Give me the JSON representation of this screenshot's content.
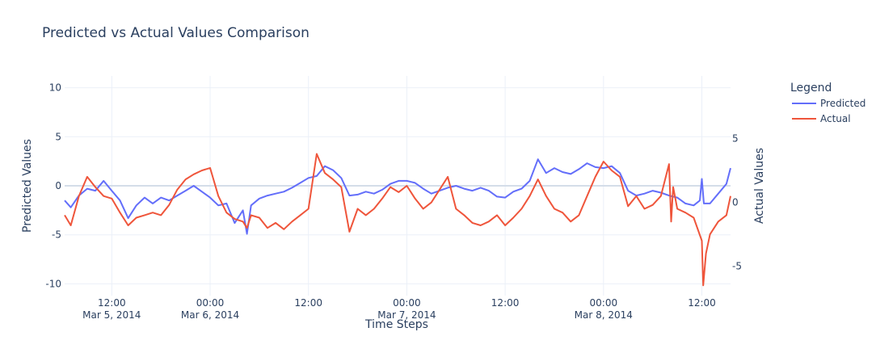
{
  "chart_data": {
    "type": "line",
    "title": "Predicted vs Actual Values Comparison",
    "xlabel": "Time Steps",
    "ylabel_left": "Predicted Values",
    "ylabel_right": "Actual Values",
    "legend_title": "Legend",
    "legend_placement": "top-right outside",
    "grid": true,
    "x_range": [
      "2014-03-05T06:15",
      "2014-03-08T15:30"
    ],
    "y_left_range": [
      -11.2,
      11.2
    ],
    "y_right_range": [
      -7.3,
      9.9
    ],
    "x_ticks": [
      {
        "value": "2014-03-05T12:00",
        "line1": "12:00",
        "line2": "Mar 5, 2014"
      },
      {
        "value": "2014-03-06T00:00",
        "line1": "00:00",
        "line2": "Mar 6, 2014"
      },
      {
        "value": "2014-03-06T12:00",
        "line1": "12:00",
        "line2": ""
      },
      {
        "value": "2014-03-07T00:00",
        "line1": "00:00",
        "line2": "Mar 7, 2014"
      },
      {
        "value": "2014-03-07T12:00",
        "line1": "12:00",
        "line2": ""
      },
      {
        "value": "2014-03-08T00:00",
        "line1": "00:00",
        "line2": "Mar 8, 2014"
      },
      {
        "value": "2014-03-08T12:00",
        "line1": "12:00",
        "line2": ""
      }
    ],
    "y_left_ticks": [
      10,
      5,
      0,
      -5,
      -10
    ],
    "y_right_ticks": [
      5,
      0,
      -5
    ],
    "series": [
      {
        "name": "Predicted",
        "axis": "left",
        "color": "#636efa",
        "points": [
          [
            "2014-03-05T06:15",
            -1.5
          ],
          [
            "2014-03-05T07:00",
            -2.2
          ],
          [
            "2014-03-05T08:00",
            -1.0
          ],
          [
            "2014-03-05T09:00",
            -0.3
          ],
          [
            "2014-03-05T10:00",
            -0.5
          ],
          [
            "2014-03-05T11:00",
            0.5
          ],
          [
            "2014-03-05T12:00",
            -0.5
          ],
          [
            "2014-03-05T13:00",
            -1.5
          ],
          [
            "2014-03-05T14:00",
            -3.3
          ],
          [
            "2014-03-05T15:00",
            -2.0
          ],
          [
            "2014-03-05T16:00",
            -1.2
          ],
          [
            "2014-03-05T17:00",
            -1.8
          ],
          [
            "2014-03-05T18:00",
            -1.2
          ],
          [
            "2014-03-05T19:00",
            -1.5
          ],
          [
            "2014-03-05T20:00",
            -1.0
          ],
          [
            "2014-03-05T21:00",
            -0.5
          ],
          [
            "2014-03-05T22:00",
            0.0
          ],
          [
            "2014-03-05T23:00",
            -0.6
          ],
          [
            "2014-03-06T00:00",
            -1.2
          ],
          [
            "2014-03-06T01:00",
            -2.0
          ],
          [
            "2014-03-06T02:00",
            -1.8
          ],
          [
            "2014-03-06T03:00",
            -3.8
          ],
          [
            "2014-03-06T04:00",
            -2.5
          ],
          [
            "2014-03-06T04:30",
            -4.9
          ],
          [
            "2014-03-06T05:00",
            -2.0
          ],
          [
            "2014-03-06T06:00",
            -1.3
          ],
          [
            "2014-03-06T07:00",
            -1.0
          ],
          [
            "2014-03-06T08:00",
            -0.8
          ],
          [
            "2014-03-06T09:00",
            -0.6
          ],
          [
            "2014-03-06T10:00",
            -0.2
          ],
          [
            "2014-03-06T11:00",
            0.3
          ],
          [
            "2014-03-06T12:00",
            0.8
          ],
          [
            "2014-03-06T13:00",
            1.0
          ],
          [
            "2014-03-06T14:00",
            2.0
          ],
          [
            "2014-03-06T15:00",
            1.6
          ],
          [
            "2014-03-06T16:00",
            0.8
          ],
          [
            "2014-03-06T17:00",
            -1.0
          ],
          [
            "2014-03-06T18:00",
            -0.9
          ],
          [
            "2014-03-06T19:00",
            -0.6
          ],
          [
            "2014-03-06T20:00",
            -0.8
          ],
          [
            "2014-03-06T21:00",
            -0.4
          ],
          [
            "2014-03-06T22:00",
            0.2
          ],
          [
            "2014-03-06T23:00",
            0.5
          ],
          [
            "2014-03-07T00:00",
            0.5
          ],
          [
            "2014-03-07T01:00",
            0.3
          ],
          [
            "2014-03-07T02:00",
            -0.3
          ],
          [
            "2014-03-07T03:00",
            -0.8
          ],
          [
            "2014-03-07T04:00",
            -0.5
          ],
          [
            "2014-03-07T05:00",
            -0.2
          ],
          [
            "2014-03-07T06:00",
            0.0
          ],
          [
            "2014-03-07T07:00",
            -0.3
          ],
          [
            "2014-03-07T08:00",
            -0.5
          ],
          [
            "2014-03-07T09:00",
            -0.2
          ],
          [
            "2014-03-07T10:00",
            -0.5
          ],
          [
            "2014-03-07T11:00",
            -1.1
          ],
          [
            "2014-03-07T12:00",
            -1.2
          ],
          [
            "2014-03-07T13:00",
            -0.6
          ],
          [
            "2014-03-07T14:00",
            -0.3
          ],
          [
            "2014-03-07T15:00",
            0.5
          ],
          [
            "2014-03-07T16:00",
            2.7
          ],
          [
            "2014-03-07T17:00",
            1.3
          ],
          [
            "2014-03-07T18:00",
            1.8
          ],
          [
            "2014-03-07T19:00",
            1.4
          ],
          [
            "2014-03-07T20:00",
            1.2
          ],
          [
            "2014-03-07T21:00",
            1.7
          ],
          [
            "2014-03-07T22:00",
            2.3
          ],
          [
            "2014-03-07T23:00",
            1.9
          ],
          [
            "2014-03-08T00:00",
            1.8
          ],
          [
            "2014-03-08T01:00",
            2.0
          ],
          [
            "2014-03-08T02:00",
            1.3
          ],
          [
            "2014-03-08T03:00",
            -0.5
          ],
          [
            "2014-03-08T04:00",
            -1.0
          ],
          [
            "2014-03-08T05:00",
            -0.8
          ],
          [
            "2014-03-08T06:00",
            -0.5
          ],
          [
            "2014-03-08T07:00",
            -0.7
          ],
          [
            "2014-03-08T08:00",
            -1.0
          ],
          [
            "2014-03-08T09:00",
            -1.2
          ],
          [
            "2014-03-08T10:00",
            -1.8
          ],
          [
            "2014-03-08T11:00",
            -2.0
          ],
          [
            "2014-03-08T11:45",
            -1.5
          ],
          [
            "2014-03-08T12:00",
            0.7
          ],
          [
            "2014-03-08T12:15",
            -1.8
          ],
          [
            "2014-03-08T13:00",
            -1.8
          ],
          [
            "2014-03-08T14:00",
            -0.8
          ],
          [
            "2014-03-08T15:00",
            0.2
          ],
          [
            "2014-03-08T15:30",
            1.8
          ]
        ]
      },
      {
        "name": "Actual",
        "axis": "right",
        "color": "#ef553b",
        "points": [
          [
            "2014-03-05T06:15",
            -1.0
          ],
          [
            "2014-03-05T07:00",
            -1.8
          ],
          [
            "2014-03-05T08:00",
            0.5
          ],
          [
            "2014-03-05T09:00",
            2.0
          ],
          [
            "2014-03-05T10:00",
            1.2
          ],
          [
            "2014-03-05T11:00",
            0.5
          ],
          [
            "2014-03-05T12:00",
            0.3
          ],
          [
            "2014-03-05T13:00",
            -0.8
          ],
          [
            "2014-03-05T14:00",
            -1.8
          ],
          [
            "2014-03-05T15:00",
            -1.2
          ],
          [
            "2014-03-05T16:00",
            -1.0
          ],
          [
            "2014-03-05T17:00",
            -0.8
          ],
          [
            "2014-03-05T18:00",
            -1.0
          ],
          [
            "2014-03-05T19:00",
            -0.2
          ],
          [
            "2014-03-05T20:00",
            1.0
          ],
          [
            "2014-03-05T21:00",
            1.8
          ],
          [
            "2014-03-05T22:00",
            2.2
          ],
          [
            "2014-03-05T23:00",
            2.5
          ],
          [
            "2014-03-06T00:00",
            2.7
          ],
          [
            "2014-03-06T01:00",
            0.5
          ],
          [
            "2014-03-06T02:00",
            -0.8
          ],
          [
            "2014-03-06T03:00",
            -1.3
          ],
          [
            "2014-03-06T04:00",
            -1.5
          ],
          [
            "2014-03-06T04:30",
            -2.0
          ],
          [
            "2014-03-06T05:00",
            -1.0
          ],
          [
            "2014-03-06T06:00",
            -1.2
          ],
          [
            "2014-03-06T07:00",
            -2.0
          ],
          [
            "2014-03-06T08:00",
            -1.6
          ],
          [
            "2014-03-06T09:00",
            -2.1
          ],
          [
            "2014-03-06T10:00",
            -1.5
          ],
          [
            "2014-03-06T11:00",
            -1.0
          ],
          [
            "2014-03-06T12:00",
            -0.5
          ],
          [
            "2014-03-06T13:00",
            3.8
          ],
          [
            "2014-03-06T14:00",
            2.3
          ],
          [
            "2014-03-06T15:00",
            1.8
          ],
          [
            "2014-03-06T16:00",
            1.2
          ],
          [
            "2014-03-06T17:00",
            -2.3
          ],
          [
            "2014-03-06T18:00",
            -0.5
          ],
          [
            "2014-03-06T19:00",
            -1.0
          ],
          [
            "2014-03-06T20:00",
            -0.5
          ],
          [
            "2014-03-06T21:00",
            0.3
          ],
          [
            "2014-03-06T22:00",
            1.2
          ],
          [
            "2014-03-06T23:00",
            0.8
          ],
          [
            "2014-03-07T00:00",
            1.3
          ],
          [
            "2014-03-07T01:00",
            0.3
          ],
          [
            "2014-03-07T02:00",
            -0.5
          ],
          [
            "2014-03-07T03:00",
            0.0
          ],
          [
            "2014-03-07T04:00",
            1.0
          ],
          [
            "2014-03-07T05:00",
            2.0
          ],
          [
            "2014-03-07T06:00",
            -0.5
          ],
          [
            "2014-03-07T07:00",
            -1.0
          ],
          [
            "2014-03-07T08:00",
            -1.6
          ],
          [
            "2014-03-07T09:00",
            -1.8
          ],
          [
            "2014-03-07T10:00",
            -1.5
          ],
          [
            "2014-03-07T11:00",
            -1.0
          ],
          [
            "2014-03-07T12:00",
            -1.8
          ],
          [
            "2014-03-07T13:00",
            -1.2
          ],
          [
            "2014-03-07T14:00",
            -0.5
          ],
          [
            "2014-03-07T15:00",
            0.5
          ],
          [
            "2014-03-07T16:00",
            1.8
          ],
          [
            "2014-03-07T17:00",
            0.5
          ],
          [
            "2014-03-07T18:00",
            -0.5
          ],
          [
            "2014-03-07T19:00",
            -0.8
          ],
          [
            "2014-03-07T20:00",
            -1.5
          ],
          [
            "2014-03-07T21:00",
            -1.0
          ],
          [
            "2014-03-07T22:00",
            0.5
          ],
          [
            "2014-03-07T23:00",
            2.0
          ],
          [
            "2014-03-08T00:00",
            3.2
          ],
          [
            "2014-03-08T01:00",
            2.5
          ],
          [
            "2014-03-08T02:00",
            2.0
          ],
          [
            "2014-03-08T03:00",
            -0.3
          ],
          [
            "2014-03-08T04:00",
            0.5
          ],
          [
            "2014-03-08T05:00",
            -0.5
          ],
          [
            "2014-03-08T06:00",
            -0.2
          ],
          [
            "2014-03-08T07:00",
            0.5
          ],
          [
            "2014-03-08T08:00",
            3.0
          ],
          [
            "2014-03-08T08:15",
            -1.5
          ],
          [
            "2014-03-08T08:30",
            1.2
          ],
          [
            "2014-03-08T09:00",
            -0.5
          ],
          [
            "2014-03-08T10:00",
            -0.8
          ],
          [
            "2014-03-08T11:00",
            -1.2
          ],
          [
            "2014-03-08T12:00",
            -3.0
          ],
          [
            "2014-03-08T12:10",
            -6.5
          ],
          [
            "2014-03-08T12:30",
            -4.0
          ],
          [
            "2014-03-08T13:00",
            -2.5
          ],
          [
            "2014-03-08T14:00",
            -1.5
          ],
          [
            "2014-03-08T15:00",
            -1.0
          ],
          [
            "2014-03-08T15:30",
            0.5
          ]
        ]
      }
    ]
  }
}
